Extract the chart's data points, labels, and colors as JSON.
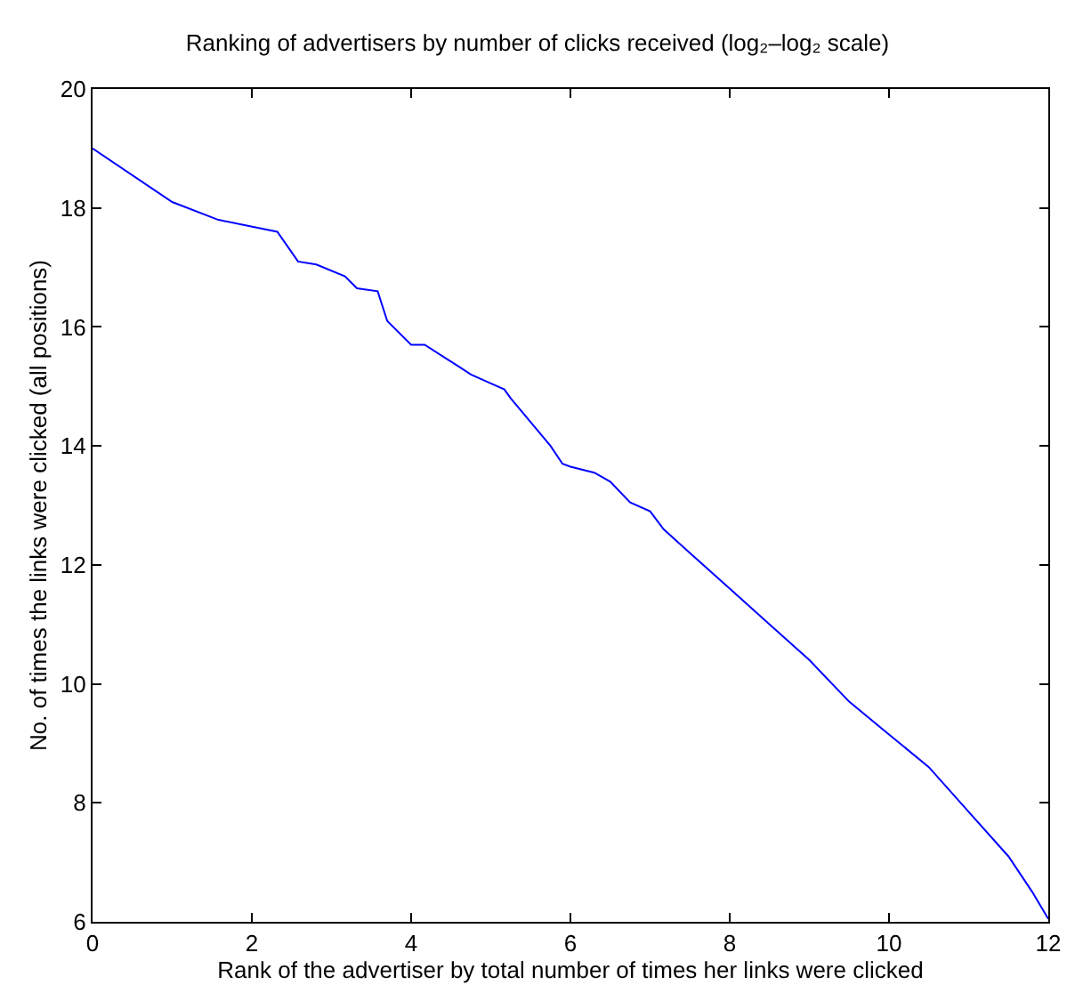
{
  "chart_data": {
    "type": "line",
    "title": "Ranking of advertisers by number of clicks received (log₂–log₂ scale)",
    "xlabel": "Rank of the advertiser by total number of times her links were clicked",
    "ylabel": "No. of times the links were clicked (all positions)",
    "x": [
      0,
      1,
      1.58,
      2.32,
      2.58,
      2.81,
      3.17,
      3.32,
      3.58,
      3.7,
      4,
      4.17,
      4.46,
      4.58,
      4.75,
      5,
      5.17,
      5.25,
      5.5,
      5.75,
      5.9,
      6,
      6.3,
      6.5,
      6.75,
      7,
      7.17,
      7.5,
      8,
      8.5,
      9,
      9.5,
      10,
      10.5,
      11,
      11.5,
      11.8,
      12
    ],
    "series": [
      {
        "color": "#0000ff",
        "values": [
          19,
          18.1,
          17.8,
          17.6,
          17.1,
          17.05,
          16.85,
          16.65,
          16.6,
          16.1,
          15.7,
          15.7,
          15.45,
          15.35,
          15.2,
          15.05,
          14.95,
          14.8,
          14.4,
          14.0,
          13.7,
          13.65,
          13.55,
          13.4,
          13.05,
          12.9,
          12.6,
          12.2,
          11.6,
          11.0,
          10.4,
          9.7,
          9.15,
          8.6,
          7.85,
          7.1,
          6.5,
          6.05
        ]
      }
    ],
    "xlim": [
      0,
      12
    ],
    "xticks": [
      0,
      2,
      4,
      6,
      8,
      10,
      12
    ],
    "ylim": [
      6,
      20
    ],
    "yticks": [
      6,
      8,
      10,
      12,
      14,
      16,
      18,
      20
    ],
    "line_style": "solid",
    "marker": "none"
  }
}
